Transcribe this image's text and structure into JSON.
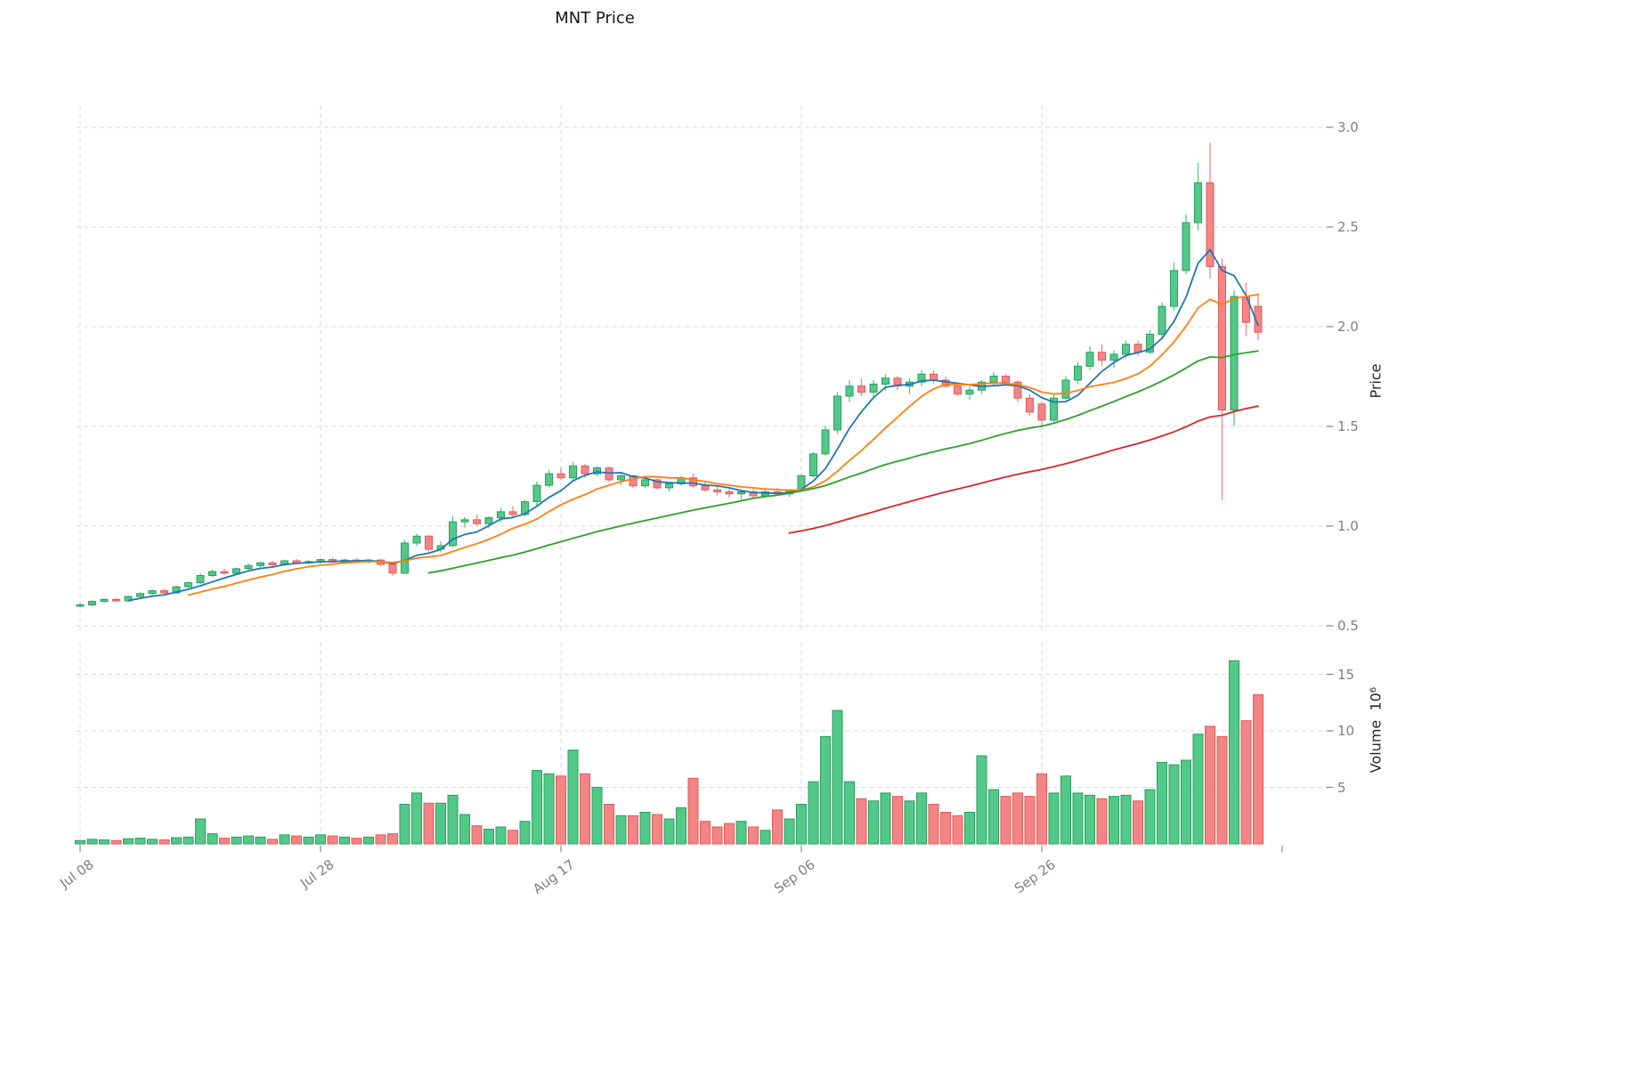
{
  "chart_data": {
    "type": "candlestick",
    "title": "MNT Price",
    "price_axis_label": "Price",
    "volume_axis_label": "Volume  10⁶",
    "volume_unit": "millions",
    "price_ylim": [
      0.5,
      3.0
    ],
    "grid": true,
    "price_ticks": [
      {
        "value": 0.5,
        "label": "0.5"
      },
      {
        "value": 1.0,
        "label": "1.0"
      },
      {
        "value": 1.5,
        "label": "1.5"
      },
      {
        "value": 2.0,
        "label": "2.0"
      },
      {
        "value": 2.5,
        "label": "2.5"
      },
      {
        "value": 3.0,
        "label": "3.0"
      }
    ],
    "volume_ticks": [
      {
        "value": 5,
        "label": "5"
      },
      {
        "value": 10,
        "label": "10"
      },
      {
        "value": 15,
        "label": "15"
      }
    ],
    "x_ticks": [
      {
        "index": 0,
        "label": "Jul 08",
        "grid": true
      },
      {
        "index": 20,
        "label": "Jul 28",
        "grid": true
      },
      {
        "index": 40,
        "label": "Aug 17",
        "grid": true
      },
      {
        "index": 60,
        "label": "Sep 06",
        "grid": true
      },
      {
        "index": 80,
        "label": "Sep 26",
        "grid": true
      },
      {
        "index": 100,
        "label": "",
        "grid": false
      }
    ],
    "moving_averages": [
      {
        "name": "MA5",
        "window": 5,
        "color": "#1f77b4"
      },
      {
        "name": "MA10",
        "window": 10,
        "color": "#ff7f0e"
      },
      {
        "name": "MA30",
        "window": 30,
        "color": "#2ca02c"
      },
      {
        "name": "MA60",
        "window": 60,
        "color": "#d62728"
      }
    ],
    "colors": {
      "up": "#53c987",
      "down": "#f48585",
      "up_edge": "#2a9d63",
      "down_edge": "#e05a5a",
      "grid": "#d9d9d9",
      "tick_mark": "#8c8c8c",
      "tick_text": "#7f7f7f"
    },
    "candle_columns": [
      "open",
      "high",
      "low",
      "close",
      "volume_millions"
    ],
    "candles": [
      [
        0.6,
        0.615,
        0.592,
        0.605,
        0.3
      ],
      [
        0.605,
        0.628,
        0.598,
        0.622,
        0.4
      ],
      [
        0.622,
        0.638,
        0.615,
        0.632,
        0.35
      ],
      [
        0.632,
        0.64,
        0.618,
        0.625,
        0.3
      ],
      [
        0.625,
        0.652,
        0.62,
        0.647,
        0.45
      ],
      [
        0.647,
        0.668,
        0.64,
        0.662,
        0.5
      ],
      [
        0.662,
        0.682,
        0.652,
        0.676,
        0.4
      ],
      [
        0.676,
        0.686,
        0.66,
        0.665,
        0.35
      ],
      [
        0.665,
        0.702,
        0.66,
        0.696,
        0.55
      ],
      [
        0.696,
        0.722,
        0.69,
        0.716,
        0.6
      ],
      [
        0.716,
        0.762,
        0.71,
        0.752,
        2.2
      ],
      [
        0.752,
        0.782,
        0.744,
        0.772,
        0.9
      ],
      [
        0.772,
        0.786,
        0.756,
        0.764,
        0.5
      ],
      [
        0.764,
        0.792,
        0.758,
        0.786,
        0.6
      ],
      [
        0.786,
        0.812,
        0.78,
        0.802,
        0.7
      ],
      [
        0.802,
        0.822,
        0.792,
        0.816,
        0.6
      ],
      [
        0.816,
        0.826,
        0.798,
        0.806,
        0.4
      ],
      [
        0.806,
        0.832,
        0.8,
        0.826,
        0.8
      ],
      [
        0.826,
        0.836,
        0.81,
        0.816,
        0.7
      ],
      [
        0.816,
        0.83,
        0.806,
        0.822,
        0.6
      ],
      [
        0.822,
        0.838,
        0.812,
        0.832,
        0.8
      ],
      [
        0.832,
        0.842,
        0.815,
        0.82,
        0.7
      ],
      [
        0.82,
        0.836,
        0.81,
        0.83,
        0.6
      ],
      [
        0.83,
        0.84,
        0.818,
        0.824,
        0.5
      ],
      [
        0.824,
        0.836,
        0.814,
        0.83,
        0.6
      ],
      [
        0.83,
        0.835,
        0.798,
        0.808,
        0.8
      ],
      [
        0.808,
        0.815,
        0.752,
        0.764,
        0.9
      ],
      [
        0.764,
        0.932,
        0.76,
        0.915,
        3.5
      ],
      [
        0.915,
        0.962,
        0.9,
        0.95,
        4.5
      ],
      [
        0.95,
        0.956,
        0.872,
        0.884,
        3.6
      ],
      [
        0.884,
        0.922,
        0.868,
        0.902,
        3.6
      ],
      [
        0.902,
        1.052,
        0.895,
        1.022,
        4.3
      ],
      [
        1.022,
        1.045,
        0.992,
        1.032,
        2.6
      ],
      [
        1.032,
        1.058,
        1.0,
        1.012,
        1.6
      ],
      [
        1.012,
        1.05,
        0.99,
        1.042,
        1.3
      ],
      [
        1.042,
        1.092,
        1.02,
        1.072,
        1.5
      ],
      [
        1.072,
        1.1,
        1.042,
        1.058,
        1.2
      ],
      [
        1.058,
        1.132,
        1.05,
        1.122,
        2.0
      ],
      [
        1.122,
        1.225,
        1.1,
        1.205,
        6.5
      ],
      [
        1.205,
        1.282,
        1.195,
        1.262,
        6.2
      ],
      [
        1.262,
        1.292,
        1.232,
        1.242,
        6.0
      ],
      [
        1.242,
        1.322,
        1.23,
        1.302,
        8.3
      ],
      [
        1.302,
        1.312,
        1.242,
        1.262,
        6.2
      ],
      [
        1.262,
        1.302,
        1.25,
        1.292,
        5.0
      ],
      [
        1.292,
        1.298,
        1.222,
        1.232,
        3.5
      ],
      [
        1.232,
        1.262,
        1.205,
        1.252,
        2.5
      ],
      [
        1.252,
        1.258,
        1.192,
        1.202,
        2.5
      ],
      [
        1.202,
        1.242,
        1.192,
        1.232,
        2.8
      ],
      [
        1.232,
        1.238,
        1.182,
        1.192,
        2.6
      ],
      [
        1.192,
        1.222,
        1.172,
        1.212,
        2.2
      ],
      [
        1.212,
        1.252,
        1.202,
        1.242,
        3.2
      ],
      [
        1.242,
        1.262,
        1.192,
        1.202,
        5.8
      ],
      [
        1.202,
        1.222,
        1.172,
        1.182,
        2.0
      ],
      [
        1.182,
        1.202,
        1.152,
        1.172,
        1.5
      ],
      [
        1.172,
        1.192,
        1.142,
        1.162,
        1.8
      ],
      [
        1.162,
        1.182,
        1.132,
        1.172,
        2.0
      ],
      [
        1.172,
        1.186,
        1.142,
        1.152,
        1.5
      ],
      [
        1.152,
        1.182,
        1.142,
        1.172,
        1.2
      ],
      [
        1.172,
        1.192,
        1.152,
        1.162,
        3.0
      ],
      [
        1.162,
        1.186,
        1.146,
        1.182,
        2.2
      ],
      [
        1.182,
        1.262,
        1.172,
        1.252,
        3.5
      ],
      [
        1.252,
        1.372,
        1.242,
        1.362,
        5.5
      ],
      [
        1.362,
        1.502,
        1.352,
        1.482,
        9.5
      ],
      [
        1.482,
        1.672,
        1.462,
        1.652,
        11.8
      ],
      [
        1.652,
        1.732,
        1.622,
        1.702,
        5.5
      ],
      [
        1.702,
        1.742,
        1.652,
        1.672,
        4.0
      ],
      [
        1.672,
        1.732,
        1.642,
        1.712,
        3.8
      ],
      [
        1.712,
        1.762,
        1.682,
        1.742,
        4.5
      ],
      [
        1.742,
        1.752,
        1.682,
        1.702,
        4.2
      ],
      [
        1.702,
        1.742,
        1.662,
        1.722,
        3.8
      ],
      [
        1.722,
        1.782,
        1.702,
        1.762,
        4.5
      ],
      [
        1.762,
        1.782,
        1.712,
        1.732,
        3.5
      ],
      [
        1.732,
        1.752,
        1.692,
        1.702,
        2.8
      ],
      [
        1.702,
        1.722,
        1.652,
        1.662,
        2.5
      ],
      [
        1.662,
        1.702,
        1.632,
        1.682,
        2.8
      ],
      [
        1.682,
        1.732,
        1.662,
        1.722,
        7.8
      ],
      [
        1.722,
        1.772,
        1.702,
        1.752,
        4.8
      ],
      [
        1.752,
        1.762,
        1.702,
        1.722,
        4.2
      ],
      [
        1.722,
        1.732,
        1.622,
        1.642,
        4.5
      ],
      [
        1.642,
        1.665,
        1.552,
        1.572,
        4.2
      ],
      [
        1.612,
        1.625,
        1.502,
        1.532,
        6.2
      ],
      [
        1.532,
        1.662,
        1.522,
        1.642,
        4.5
      ],
      [
        1.642,
        1.752,
        1.632,
        1.732,
        6.0
      ],
      [
        1.732,
        1.822,
        1.712,
        1.802,
        4.5
      ],
      [
        1.802,
        1.902,
        1.782,
        1.872,
        4.3
      ],
      [
        1.872,
        1.912,
        1.802,
        1.832,
        4.0
      ],
      [
        1.832,
        1.882,
        1.792,
        1.862,
        4.2
      ],
      [
        1.862,
        1.932,
        1.842,
        1.912,
        4.3
      ],
      [
        1.912,
        1.932,
        1.852,
        1.872,
        3.8
      ],
      [
        1.872,
        1.982,
        1.862,
        1.962,
        4.8
      ],
      [
        1.962,
        2.122,
        1.942,
        2.102,
        7.2
      ],
      [
        2.102,
        2.322,
        2.082,
        2.282,
        7.0
      ],
      [
        2.282,
        2.562,
        2.262,
        2.522,
        7.4
      ],
      [
        2.522,
        2.822,
        2.482,
        2.722,
        9.7
      ],
      [
        2.722,
        2.922,
        2.242,
        2.302,
        10.4
      ],
      [
        2.302,
        2.342,
        1.132,
        1.582,
        9.5
      ],
      [
        1.582,
        2.182,
        1.502,
        2.152,
        16.2
      ],
      [
        2.152,
        2.222,
        1.952,
        2.022,
        10.9
      ],
      [
        2.102,
        2.162,
        1.932,
        1.972,
        13.2
      ]
    ]
  }
}
